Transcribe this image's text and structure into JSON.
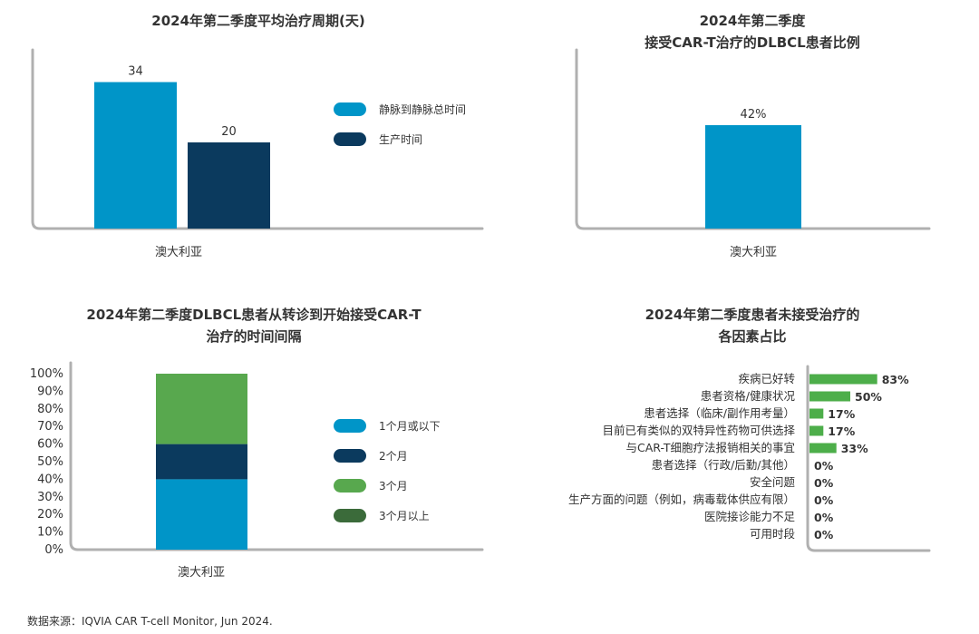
{
  "colors": {
    "light_blue": "#0095C8",
    "navy": "#0B3A5E",
    "green": "#58A84E",
    "dark_green": "#3B6B3A",
    "bar_green": "#4DAE4A",
    "axis": "#B0B0B0"
  },
  "footer": "数据来源：IQVIA CAR T-cell Monitor, Jun 2024.",
  "chart_data": [
    {
      "id": "treatment-cycle",
      "type": "bar",
      "title": [
        "2024年第二季度平均治疗周期(天)"
      ],
      "categories": [
        "澳大利亚"
      ],
      "series": [
        {
          "name": "静脉到静脉总时间",
          "values": [
            34
          ],
          "color": "#0095C8"
        },
        {
          "name": "生产时间",
          "values": [
            20
          ],
          "color": "#0B3A5E"
        }
      ],
      "data_labels": [
        "34",
        "20"
      ],
      "ylim": [
        0,
        40
      ],
      "legend": "right"
    },
    {
      "id": "dlbcl-share",
      "type": "bar",
      "title": [
        "2024年第二季度",
        "接受CAR-T治疗的DLBCL患者比例"
      ],
      "categories": [
        "澳大利亚"
      ],
      "series": [
        {
          "values": [
            42
          ],
          "color": "#0095C8"
        }
      ],
      "data_labels": [
        "42%"
      ],
      "ylim": [
        0,
        70
      ]
    },
    {
      "id": "referral-interval",
      "type": "bar",
      "stacked": true,
      "title": [
        "2024年第二季度DLBCL患者从转诊到开始接受CAR-T",
        "治疗的时间间隔"
      ],
      "categories": [
        "澳大利亚"
      ],
      "yticks": [
        "0%",
        "10%",
        "20%",
        "30%",
        "40%",
        "50%",
        "60%",
        "70%",
        "80%",
        "90%",
        "100%"
      ],
      "ylim": [
        0,
        100
      ],
      "series": [
        {
          "name": "1个月或以下",
          "values": [
            40
          ],
          "color": "#0095C8"
        },
        {
          "name": "2个月",
          "values": [
            20
          ],
          "color": "#0B3A5E"
        },
        {
          "name": "3个月",
          "values": [
            40
          ],
          "color": "#58A84E"
        },
        {
          "name": "3个月以上",
          "values": [
            0
          ],
          "color": "#3B6B3A"
        }
      ],
      "legend": "right"
    },
    {
      "id": "untreated-factors",
      "type": "bar",
      "orientation": "horizontal",
      "title": [
        "2024年第二季度患者未接受治疗的",
        "各因素占比"
      ],
      "categories": [
        "疾病已好转",
        "患者资格/健康状况",
        "患者选择（临床/副作用考量）",
        "目前已有类似的双特异性药物可供选择",
        "与CAR-T细胞疗法报销相关的事宜",
        "患者选择（行政/后勤/其他）",
        "安全问题",
        "生产方面的问题（例如，病毒载体供应有限）",
        "医院接诊能力不足",
        "可用时段"
      ],
      "values": [
        83,
        50,
        17,
        17,
        33,
        0,
        0,
        0,
        0,
        0
      ],
      "data_labels": [
        "83%",
        "50%",
        "17%",
        "17%",
        "33%",
        "0%",
        "0%",
        "0%",
        "0%",
        "0%"
      ],
      "xlim": [
        0,
        100
      ],
      "color": "#4DAE4A"
    }
  ]
}
